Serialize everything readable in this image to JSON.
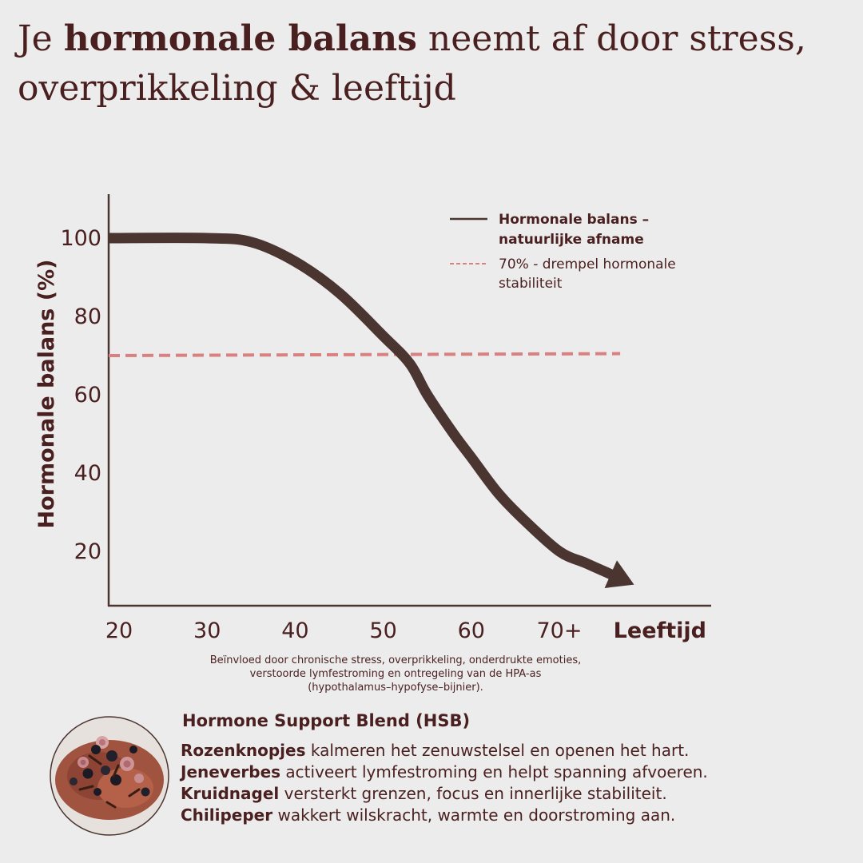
{
  "title": {
    "prefix": "Je",
    "bold": "hormonale balans",
    "suffix": "neemt af door stress, overprikkeling & leeftijd"
  },
  "chart_data": {
    "type": "line",
    "ylabel": "Hormonale balans (%)",
    "xlabel": "Leeftijd",
    "x_ticks": [
      "20",
      "30",
      "40",
      "50",
      "60",
      "70+"
    ],
    "y_ticks": [
      "20",
      "40",
      "60",
      "80",
      "100"
    ],
    "ylim": [
      8,
      112
    ],
    "xlim": [
      20,
      78
    ],
    "series": [
      {
        "name": "Hormonale balans – natuurlijke afname",
        "color": "#4a3531",
        "style": "solid-arrow",
        "points": [
          [
            20,
            100
          ],
          [
            30,
            100
          ],
          [
            35,
            99
          ],
          [
            40,
            94
          ],
          [
            45,
            86
          ],
          [
            50,
            75
          ],
          [
            53,
            68
          ],
          [
            55,
            60
          ],
          [
            58,
            50
          ],
          [
            60,
            44
          ],
          [
            63,
            35
          ],
          [
            66,
            28
          ],
          [
            70,
            20
          ],
          [
            73,
            17
          ],
          [
            76,
            14
          ]
        ]
      },
      {
        "name": "70% - drempel hormonale stabiliteit",
        "color": "#d98080",
        "style": "dashed",
        "points": [
          [
            20,
            70
          ],
          [
            76,
            70.5
          ]
        ]
      }
    ],
    "legend_position": "top-right",
    "grid": false
  },
  "legend": {
    "line_label_1": "Hormonale balans –",
    "line_label_2": "natuurlijke afname",
    "dash_label_1": "70% - drempel hormonale",
    "dash_label_2": "stabiliteit"
  },
  "caption": {
    "line1": "Beïnvloed door chronische stress, overprikkeling, onderdrukte emoties,",
    "line2": "verstoorde lymfestroming en ontregeling van de HPA-as",
    "line3": "(hypothalamus–hypofyse–bijnier)."
  },
  "blend": {
    "title": "Hormone Support Blend (HSB)",
    "items": [
      {
        "name": "Rozenknopjes",
        "text": "kalmeren het zenuwstelsel en openen het hart."
      },
      {
        "name": "Jeneverbes",
        "text": "activeert lymfestroming en helpt spanning afvoeren."
      },
      {
        "name": "Kruidnagel",
        "text": "versterkt grenzen, focus en innerlijke stabiliteit."
      },
      {
        "name": "Chilipeper",
        "text": "wakkert wilskracht, warmte en doorstroming aan."
      }
    ]
  },
  "colors": {
    "background": "#ececec",
    "text": "#4a1f1f",
    "curve": "#4a3531",
    "threshold": "#d98080"
  }
}
